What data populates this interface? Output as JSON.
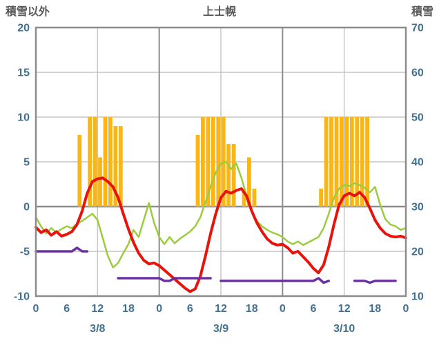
{
  "header": {
    "left_axis_title": "積雪以外",
    "chart_title": "上士幌",
    "right_axis_title": "積雪"
  },
  "colors": {
    "bar": "#FBB614",
    "red_line": "#E8130B",
    "green_line": "#9CCB3B",
    "snow_line": "#6B30A0",
    "grid": "#C6C6C6",
    "grid_major": "#8C8C8C",
    "frame": "#8C8C8C",
    "axis_text": "#40708F",
    "title_text": "#595959"
  },
  "chart_data": {
    "type": "line",
    "title": "上士幌",
    "legend": "none",
    "grid": "on",
    "left_axis": {
      "label": "積雪以外",
      "min": -10,
      "max": 20,
      "ticks": [
        20,
        15,
        10,
        5,
        0,
        -5,
        -10
      ]
    },
    "right_axis": {
      "label": "積雪",
      "min": 10,
      "max": 70,
      "ticks": [
        70,
        60,
        50,
        40,
        30,
        20,
        10
      ]
    },
    "x_axis": {
      "hours_total": 72,
      "tick_interval": 6,
      "tick_labels": [
        "0",
        "6",
        "12",
        "18",
        "0",
        "6",
        "12",
        "18",
        "0",
        "6",
        "12",
        "18",
        "0"
      ],
      "date_labels": [
        {
          "label": "3/8",
          "hour": 12
        },
        {
          "label": "3/9",
          "hour": 36
        },
        {
          "label": "3/10",
          "hour": 60
        }
      ],
      "gridline_hours": [
        12,
        24,
        36,
        48,
        60
      ]
    },
    "series": [
      {
        "name": "bars",
        "type": "bar",
        "axis": "left",
        "values": [
          0,
          0,
          0,
          0,
          0,
          0,
          0,
          0,
          8,
          0,
          10,
          10,
          5.5,
          10,
          10,
          9,
          9,
          0,
          0,
          0,
          0,
          0,
          0,
          0,
          0,
          0,
          0,
          0,
          0,
          0,
          0,
          8,
          10,
          10,
          10,
          10,
          10,
          7,
          7,
          0,
          2,
          5.5,
          2,
          0,
          0,
          0,
          0,
          0,
          0,
          0,
          0,
          0,
          0,
          0,
          0,
          2,
          10,
          10,
          10,
          10,
          10,
          10,
          10,
          10,
          10,
          0,
          0,
          0,
          0,
          0,
          0,
          0
        ]
      },
      {
        "name": "red_line",
        "type": "line",
        "axis": "left",
        "values": [
          -2.3,
          -2.9,
          -2.6,
          -3.2,
          -2.8,
          -3.3,
          -3.1,
          -2.8,
          -2.0,
          -0.5,
          1.5,
          2.8,
          3.1,
          3.2,
          2.8,
          2.2,
          1.0,
          -0.8,
          -2.5,
          -4.0,
          -5.2,
          -6.0,
          -6.4,
          -6.3,
          -6.6,
          -7.1,
          -7.6,
          -8.1,
          -8.6,
          -9.1,
          -9.5,
          -9.2,
          -7.8,
          -5.5,
          -3.0,
          -0.8,
          1.0,
          1.7,
          1.5,
          1.8,
          2.0,
          1.2,
          -0.5,
          -1.8,
          -2.8,
          -3.6,
          -4.1,
          -4.3,
          -4.2,
          -4.6,
          -5.2,
          -5.0,
          -5.6,
          -6.2,
          -6.9,
          -7.4,
          -6.5,
          -4.5,
          -2.0,
          0.2,
          1.2,
          1.5,
          1.2,
          1.6,
          1.0,
          -0.2,
          -1.5,
          -2.4,
          -3.0,
          -3.3,
          -3.4,
          -3.3,
          -3.5
        ]
      },
      {
        "name": "green_line",
        "type": "line",
        "axis": "left",
        "values": [
          -1.2,
          -2.2,
          -3.0,
          -2.4,
          -2.9,
          -2.5,
          -2.2,
          -2.4,
          -1.9,
          -1.6,
          -1.2,
          -0.8,
          -1.5,
          -3.5,
          -5.5,
          -6.8,
          -6.3,
          -5.2,
          -4.2,
          -2.6,
          -3.4,
          -1.5,
          0.4,
          -1.8,
          -3.4,
          -4.2,
          -3.4,
          -4.1,
          -3.6,
          -3.2,
          -2.8,
          -2.2,
          -1.2,
          0.5,
          2.2,
          3.8,
          4.8,
          5.0,
          4.2,
          4.8,
          3.2,
          1.2,
          -0.6,
          -1.6,
          -2.2,
          -2.6,
          -2.9,
          -3.1,
          -3.4,
          -3.9,
          -4.2,
          -3.9,
          -4.3,
          -4.0,
          -3.7,
          -3.4,
          -2.4,
          -0.8,
          1.0,
          2.0,
          2.4,
          2.3,
          2.6,
          2.4,
          2.1,
          1.6,
          2.2,
          0.2,
          -1.4,
          -2.0,
          -2.2,
          -2.6,
          -2.4
        ]
      },
      {
        "name": "snow_line",
        "type": "line",
        "axis": "right",
        "values": [
          20,
          20,
          20,
          20,
          20,
          20,
          20,
          20,
          20.8,
          20,
          20,
          null,
          null,
          null,
          null,
          null,
          14,
          14,
          14,
          14,
          14,
          14,
          14,
          14,
          14,
          13.4,
          13.4,
          14,
          14,
          14,
          14,
          14,
          14,
          14,
          14,
          null,
          13.4,
          13.4,
          13.4,
          13.4,
          13.4,
          13.4,
          13.4,
          13.4,
          13.4,
          13.4,
          13.4,
          13.4,
          13.4,
          13.4,
          13.4,
          13.4,
          13.4,
          13.4,
          13.4,
          14,
          13,
          13.4,
          null,
          null,
          null,
          null,
          13.4,
          13.4,
          13.4,
          13,
          13.4,
          13.4,
          13.4,
          13.4,
          13.4,
          null,
          null
        ]
      }
    ]
  }
}
